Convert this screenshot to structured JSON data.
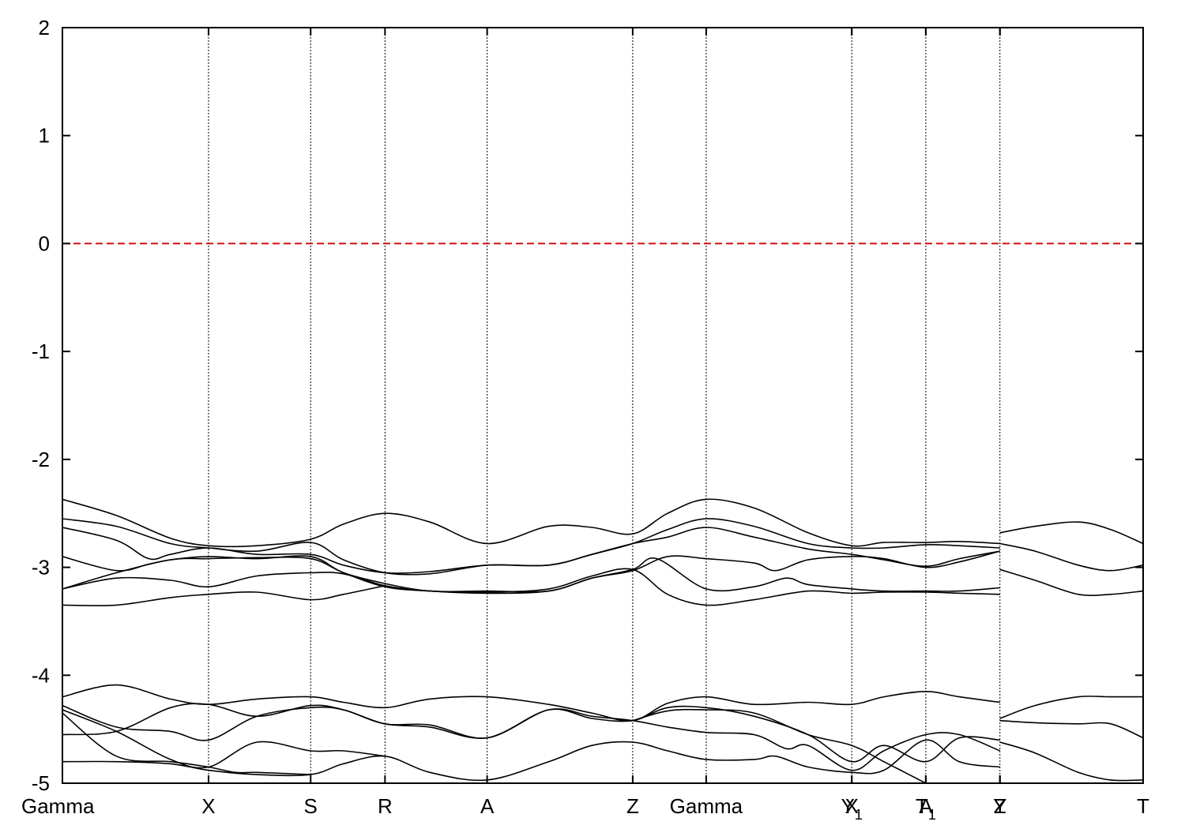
{
  "chart_data": {
    "type": "line",
    "title": "",
    "xlabel": "",
    "ylabel": "",
    "ylim": [
      -5,
      2
    ],
    "yticks": [
      2,
      1,
      0,
      -1,
      -2,
      -3,
      -4,
      -5
    ],
    "fermi_level": 0,
    "fermi_color": "#d40000",
    "band_color": "#000000",
    "xlim": [
      0,
      10
    ],
    "kpoints": [
      {
        "x": 0.0,
        "label": "Gamma"
      },
      {
        "x": 1.352,
        "label": "X"
      },
      {
        "x": 2.297,
        "label": "S"
      },
      {
        "x": 2.985,
        "label": "R"
      },
      {
        "x": 3.93,
        "label": "A"
      },
      {
        "x": 5.277,
        "label": "Z"
      },
      {
        "x": 5.957,
        "label": "Gamma"
      },
      {
        "x": 7.304,
        "label": "X"
      },
      {
        "x": 7.304,
        "label": "Y1",
        "subscript": "1",
        "base": "Y"
      },
      {
        "x": 7.989,
        "label": "A"
      },
      {
        "x": 7.989,
        "label": "T1",
        "subscript": "1",
        "base": "T"
      },
      {
        "x": 8.675,
        "label": "Y"
      },
      {
        "x": 8.675,
        "label": "Z"
      },
      {
        "x": 10.0,
        "label": "T"
      }
    ],
    "series": [
      {
        "values": [
          [
            0,
            -2.37
          ],
          [
            0.5,
            -2.52
          ],
          [
            1.0,
            -2.73
          ],
          [
            1.352,
            -2.8
          ],
          [
            1.8,
            -2.8
          ],
          [
            2.297,
            -2.74
          ],
          [
            2.6,
            -2.6
          ],
          [
            2.985,
            -2.5
          ],
          [
            3.4,
            -2.58
          ],
          [
            3.93,
            -2.78
          ],
          [
            4.5,
            -2.62
          ],
          [
            4.9,
            -2.63
          ],
          [
            5.277,
            -2.69
          ],
          [
            5.6,
            -2.5
          ],
          [
            5.957,
            -2.37
          ],
          [
            6.4,
            -2.45
          ],
          [
            6.9,
            -2.68
          ],
          [
            7.304,
            -2.8
          ],
          [
            7.6,
            -2.77
          ],
          [
            7.989,
            -2.77
          ],
          [
            8.3,
            -2.76
          ],
          [
            8.675,
            -2.78
          ]
        ]
      },
      {
        "values": [
          [
            0,
            -2.55
          ],
          [
            0.5,
            -2.62
          ],
          [
            1.0,
            -2.78
          ],
          [
            1.352,
            -2.82
          ],
          [
            1.8,
            -2.85
          ],
          [
            2.297,
            -2.77
          ],
          [
            2.6,
            -2.93
          ],
          [
            2.985,
            -3.05
          ],
          [
            3.4,
            -3.06
          ],
          [
            3.93,
            -2.98
          ],
          [
            4.5,
            -2.98
          ],
          [
            4.9,
            -2.88
          ],
          [
            5.277,
            -2.78
          ],
          [
            5.6,
            -2.65
          ],
          [
            5.957,
            -2.55
          ],
          [
            6.4,
            -2.62
          ],
          [
            6.9,
            -2.78
          ],
          [
            7.304,
            -2.82
          ],
          [
            7.6,
            -2.82
          ],
          [
            7.989,
            -2.79
          ],
          [
            8.3,
            -2.8
          ],
          [
            8.675,
            -2.82
          ]
        ]
      },
      {
        "values": [
          [
            0,
            -2.63
          ],
          [
            0.5,
            -2.75
          ],
          [
            0.8,
            -2.92
          ],
          [
            1.0,
            -2.88
          ],
          [
            1.352,
            -2.82
          ],
          [
            1.8,
            -2.88
          ],
          [
            2.297,
            -2.88
          ],
          [
            2.6,
            -2.98
          ],
          [
            2.985,
            -3.05
          ],
          [
            3.4,
            -3.04
          ],
          [
            3.93,
            -2.98
          ],
          [
            4.5,
            -2.98
          ],
          [
            4.9,
            -2.88
          ],
          [
            5.277,
            -2.78
          ],
          [
            5.6,
            -2.72
          ],
          [
            5.957,
            -2.63
          ],
          [
            6.4,
            -2.72
          ],
          [
            6.9,
            -2.83
          ],
          [
            7.304,
            -2.88
          ],
          [
            7.6,
            -2.93
          ],
          [
            7.989,
            -2.99
          ],
          [
            8.3,
            -2.92
          ],
          [
            8.675,
            -2.85
          ]
        ]
      },
      {
        "values": [
          [
            0,
            -2.9
          ],
          [
            0.5,
            -3.03
          ],
          [
            0.8,
            -2.97
          ],
          [
            1.0,
            -2.93
          ],
          [
            1.352,
            -2.9
          ],
          [
            1.8,
            -2.92
          ],
          [
            2.297,
            -2.9
          ],
          [
            2.6,
            -3.05
          ],
          [
            2.985,
            -3.15
          ],
          [
            3.4,
            -3.22
          ],
          [
            3.93,
            -3.22
          ],
          [
            4.5,
            -3.22
          ],
          [
            4.9,
            -3.1
          ],
          [
            5.277,
            -3.03
          ],
          [
            5.6,
            -2.9
          ],
          [
            5.957,
            -2.92
          ],
          [
            6.4,
            -2.96
          ],
          [
            6.6,
            -3.03
          ],
          [
            6.9,
            -2.93
          ],
          [
            7.304,
            -2.9
          ],
          [
            7.6,
            -2.92
          ],
          [
            7.989,
            -3.0
          ],
          [
            8.3,
            -2.95
          ],
          [
            8.675,
            -2.85
          ]
        ]
      },
      {
        "values": [
          [
            0,
            -3.2
          ],
          [
            0.5,
            -3.05
          ],
          [
            1.0,
            -2.93
          ],
          [
            1.352,
            -2.92
          ],
          [
            1.8,
            -2.91
          ],
          [
            2.297,
            -2.92
          ],
          [
            2.6,
            -3.05
          ],
          [
            2.985,
            -3.18
          ],
          [
            3.4,
            -3.22
          ],
          [
            3.93,
            -3.24
          ],
          [
            4.5,
            -3.22
          ],
          [
            4.9,
            -3.1
          ],
          [
            5.277,
            -3.02
          ],
          [
            5.5,
            -2.92
          ],
          [
            5.957,
            -3.2
          ],
          [
            6.4,
            -3.18
          ],
          [
            6.7,
            -3.1
          ],
          [
            6.9,
            -3.16
          ],
          [
            7.304,
            -3.2
          ],
          [
            7.6,
            -3.22
          ],
          [
            7.989,
            -3.22
          ],
          [
            8.3,
            -3.22
          ],
          [
            8.675,
            -3.19
          ]
        ]
      },
      {
        "values": [
          [
            0,
            -3.2
          ],
          [
            0.5,
            -3.1
          ],
          [
            1.0,
            -3.12
          ],
          [
            1.352,
            -3.18
          ],
          [
            1.8,
            -3.08
          ],
          [
            2.297,
            -3.05
          ],
          [
            2.6,
            -3.06
          ],
          [
            2.985,
            -3.17
          ],
          [
            3.4,
            -3.22
          ],
          [
            3.93,
            -3.23
          ],
          [
            4.5,
            -3.2
          ],
          [
            4.9,
            -3.08
          ],
          [
            5.277,
            -3.02
          ],
          [
            5.6,
            -3.25
          ],
          [
            5.957,
            -3.35
          ],
          [
            6.4,
            -3.3
          ],
          [
            6.9,
            -3.22
          ],
          [
            7.304,
            -3.24
          ],
          [
            7.6,
            -3.23
          ],
          [
            7.989,
            -3.23
          ],
          [
            8.3,
            -3.24
          ],
          [
            8.675,
            -3.25
          ]
        ]
      },
      {
        "values": [
          [
            0,
            -3.35
          ],
          [
            0.5,
            -3.35
          ],
          [
            1.0,
            -3.28
          ],
          [
            1.352,
            -3.25
          ],
          [
            1.8,
            -3.23
          ],
          [
            2.297,
            -3.3
          ],
          [
            2.6,
            -3.25
          ],
          [
            2.985,
            -3.17
          ]
        ]
      },
      {
        "values": [
          [
            0,
            -4.2
          ],
          [
            0.5,
            -4.09
          ],
          [
            1.0,
            -4.22
          ],
          [
            1.352,
            -4.27
          ],
          [
            1.8,
            -4.22
          ],
          [
            2.297,
            -4.2
          ],
          [
            2.6,
            -4.25
          ],
          [
            2.985,
            -4.3
          ],
          [
            3.4,
            -4.22
          ],
          [
            3.93,
            -4.2
          ],
          [
            4.5,
            -4.27
          ],
          [
            4.9,
            -4.35
          ],
          [
            5.277,
            -4.42
          ],
          [
            5.6,
            -4.26
          ],
          [
            5.957,
            -4.2
          ],
          [
            6.4,
            -4.27
          ],
          [
            6.9,
            -4.25
          ],
          [
            7.304,
            -4.27
          ],
          [
            7.6,
            -4.2
          ],
          [
            7.989,
            -4.15
          ],
          [
            8.3,
            -4.2
          ],
          [
            8.675,
            -4.25
          ]
        ]
      },
      {
        "values": [
          [
            0,
            -4.28
          ],
          [
            0.5,
            -4.48
          ],
          [
            1.0,
            -4.52
          ],
          [
            1.352,
            -4.6
          ],
          [
            1.8,
            -4.38
          ],
          [
            2.297,
            -4.3
          ],
          [
            2.6,
            -4.32
          ],
          [
            2.985,
            -4.45
          ],
          [
            3.4,
            -4.48
          ],
          [
            3.93,
            -4.58
          ],
          [
            4.5,
            -4.32
          ],
          [
            4.9,
            -4.4
          ],
          [
            5.277,
            -4.42
          ],
          [
            5.6,
            -4.3
          ],
          [
            5.957,
            -4.3
          ],
          [
            6.4,
            -4.38
          ],
          [
            6.9,
            -4.55
          ],
          [
            7.304,
            -4.8
          ],
          [
            7.6,
            -4.65
          ],
          [
            7.989,
            -4.8
          ],
          [
            8.3,
            -4.58
          ],
          [
            8.675,
            -4.6
          ]
        ]
      },
      {
        "values": [
          [
            0,
            -4.32
          ],
          [
            0.5,
            -4.52
          ],
          [
            1.0,
            -4.78
          ],
          [
            1.352,
            -4.85
          ],
          [
            1.8,
            -4.62
          ],
          [
            2.297,
            -4.7
          ],
          [
            2.6,
            -4.7
          ],
          [
            2.985,
            -4.75
          ]
        ]
      },
      {
        "values": [
          [
            0,
            -4.55
          ],
          [
            0.5,
            -4.52
          ],
          [
            1.0,
            -4.3
          ],
          [
            1.352,
            -4.27
          ],
          [
            1.8,
            -4.38
          ],
          [
            2.297,
            -4.28
          ],
          [
            2.6,
            -4.32
          ],
          [
            2.985,
            -4.45
          ],
          [
            3.4,
            -4.46
          ],
          [
            3.93,
            -4.58
          ],
          [
            4.5,
            -4.32
          ],
          [
            4.9,
            -4.38
          ],
          [
            5.277,
            -4.42
          ],
          [
            5.6,
            -4.48
          ],
          [
            5.957,
            -4.53
          ],
          [
            6.4,
            -4.55
          ],
          [
            6.7,
            -4.68
          ],
          [
            6.9,
            -4.65
          ],
          [
            7.304,
            -4.88
          ],
          [
            7.6,
            -4.7
          ],
          [
            7.989,
            -4.55
          ],
          [
            8.3,
            -4.55
          ],
          [
            8.675,
            -4.7
          ]
        ]
      },
      {
        "values": [
          [
            0,
            -4.8
          ],
          [
            0.5,
            -4.8
          ],
          [
            1.0,
            -4.82
          ],
          [
            1.352,
            -4.88
          ],
          [
            1.8,
            -4.92
          ],
          [
            2.297,
            -4.92
          ],
          [
            2.6,
            -4.82
          ],
          [
            2.985,
            -4.75
          ],
          [
            3.4,
            -4.9
          ],
          [
            3.93,
            -4.97
          ],
          [
            4.5,
            -4.8
          ],
          [
            4.9,
            -4.65
          ],
          [
            5.277,
            -4.62
          ],
          [
            5.6,
            -4.7
          ],
          [
            5.957,
            -4.78
          ],
          [
            6.4,
            -4.78
          ],
          [
            6.6,
            -4.75
          ],
          [
            6.9,
            -4.85
          ],
          [
            7.304,
            -4.9
          ],
          [
            7.6,
            -4.88
          ],
          [
            7.989,
            -4.6
          ],
          [
            8.3,
            -4.8
          ],
          [
            8.675,
            -4.85
          ]
        ]
      },
      {
        "values": [
          [
            0,
            -4.35
          ],
          [
            0.5,
            -4.75
          ],
          [
            1.0,
            -4.8
          ],
          [
            1.352,
            -4.85
          ],
          [
            1.6,
            -4.9
          ],
          [
            1.8,
            -4.9
          ],
          [
            2.297,
            -4.92
          ]
        ]
      },
      {
        "values": [
          [
            5.277,
            -4.42
          ],
          [
            5.6,
            -4.33
          ],
          [
            5.957,
            -4.32
          ],
          [
            6.4,
            -4.35
          ],
          [
            6.9,
            -4.55
          ],
          [
            7.304,
            -4.65
          ],
          [
            7.6,
            -4.8
          ],
          [
            7.989,
            -5.0
          ]
        ]
      },
      {
        "values": [
          [
            8.675,
            -2.68
          ],
          [
            9.0,
            -2.62
          ],
          [
            9.4,
            -2.58
          ],
          [
            9.7,
            -2.65
          ],
          [
            10.0,
            -2.78
          ]
        ]
      },
      {
        "values": [
          [
            8.675,
            -2.78
          ],
          [
            9.0,
            -2.85
          ],
          [
            9.4,
            -2.98
          ],
          [
            9.7,
            -3.03
          ],
          [
            10.0,
            -2.98
          ]
        ]
      },
      {
        "values": [
          [
            8.675,
            -3.02
          ],
          [
            9.0,
            -3.12
          ],
          [
            9.4,
            -3.25
          ],
          [
            9.7,
            -3.25
          ],
          [
            10.0,
            -3.22
          ]
        ]
      },
      {
        "values": [
          [
            8.675,
            -4.4
          ],
          [
            9.0,
            -4.28
          ],
          [
            9.4,
            -4.2
          ],
          [
            9.7,
            -4.2
          ],
          [
            10.0,
            -4.2
          ]
        ]
      },
      {
        "values": [
          [
            8.675,
            -4.42
          ],
          [
            9.0,
            -4.44
          ],
          [
            9.4,
            -4.45
          ],
          [
            9.7,
            -4.45
          ],
          [
            10.0,
            -4.58
          ]
        ]
      },
      {
        "values": [
          [
            8.675,
            -4.62
          ],
          [
            9.0,
            -4.72
          ],
          [
            9.4,
            -4.9
          ],
          [
            9.7,
            -4.97
          ],
          [
            10.0,
            -4.97
          ]
        ]
      }
    ]
  }
}
